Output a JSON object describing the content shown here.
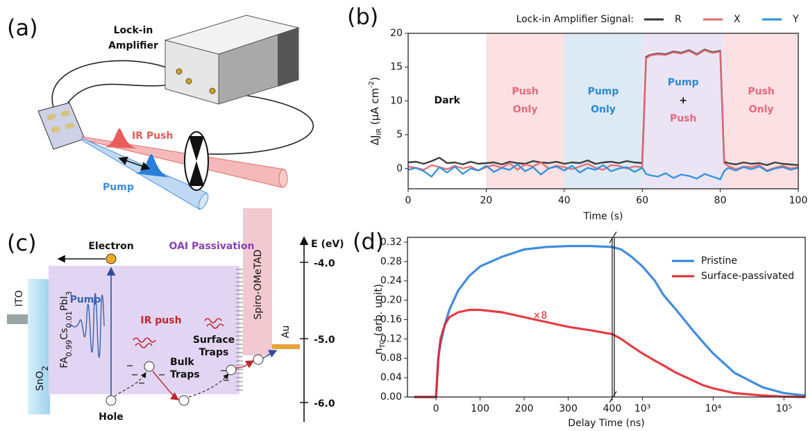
{
  "panel_a": {
    "label": "(a)",
    "instrument": [
      "Lock-in",
      "Amplifier"
    ],
    "ir_push": "IR Push",
    "pump": "Pump"
  },
  "panel_c": {
    "label": "(c)",
    "electron": "Electron",
    "passivation": "OAI Passivation",
    "energy_axis": "E (eV)",
    "energy_levels": [
      "-4.0",
      "-5.0",
      "-6.0"
    ],
    "ito": "ITO",
    "sno2": [
      "SnO",
      "2"
    ],
    "perovskite": [
      "FA",
      "0.99",
      "Cs",
      "0.01",
      "PbI",
      "3"
    ],
    "pump": "Pump",
    "ir_push": "IR push",
    "bulk_traps": [
      "Bulk",
      "Traps"
    ],
    "surface_traps": [
      "Surface",
      "Traps"
    ],
    "htl": "Spiro-OMeTAD",
    "au": "Au",
    "hole": "Hole"
  },
  "chart_data": [
    {
      "type": "line",
      "panel_label": "(b)",
      "xlabel": "Time (s)",
      "ylabel": [
        "ΔJ",
        "IR",
        " (μA cm",
        "-2",
        ")"
      ],
      "legend_title": "Lock-in Amplifier Signal:",
      "xlim": [
        0,
        100
      ],
      "xticks": [
        0,
        20,
        40,
        60,
        80,
        100
      ],
      "ylim": [
        -3,
        20
      ],
      "yticks": [
        0,
        5,
        10,
        15,
        20
      ],
      "regions": [
        {
          "label": [
            "Dark"
          ],
          "label_colors": [
            "#111111"
          ],
          "start": 0,
          "end": 20,
          "color": "#ffffff"
        },
        {
          "label": [
            "Push",
            "Only"
          ],
          "label_colors": [
            "#e8677a",
            "#e8677a"
          ],
          "start": 20,
          "end": 40,
          "color": "#fbe1e3"
        },
        {
          "label": [
            "Pump",
            "Only"
          ],
          "label_colors": [
            "#2a8ad8",
            "#2a8ad8"
          ],
          "start": 40,
          "end": 60,
          "color": "#dde9f3"
        },
        {
          "label": [
            "Pump",
            "+",
            "Push"
          ],
          "label_colors": [
            "#2a8ad8",
            "#111111",
            "#e8677a"
          ],
          "start": 60,
          "end": 81,
          "color": "#ebe4f5"
        },
        {
          "label": [
            "Push",
            "Only"
          ],
          "label_colors": [
            "#e8677a",
            "#e8677a"
          ],
          "start": 81,
          "end": 100,
          "color": "#fbe1e3"
        }
      ],
      "x": [
        0,
        2,
        4,
        6,
        8,
        10,
        12,
        14,
        16,
        18,
        20,
        22,
        24,
        26,
        28,
        30,
        32,
        34,
        36,
        38,
        40,
        42,
        44,
        46,
        48,
        50,
        52,
        54,
        56,
        58,
        60,
        61,
        62,
        64,
        66,
        68,
        70,
        72,
        74,
        76,
        78,
        80,
        81,
        82,
        84,
        86,
        88,
        90,
        92,
        94,
        96,
        98,
        100
      ],
      "series": [
        {
          "name": "R",
          "color": "#333333",
          "values": [
            0.9,
            1.0,
            0.7,
            1.1,
            1.6,
            0.8,
            0.9,
            0.6,
            1.0,
            0.7,
            0.8,
            0.9,
            0.6,
            1.0,
            0.8,
            0.7,
            1.1,
            0.9,
            0.8,
            1.0,
            0.7,
            0.9,
            0.8,
            1.2,
            0.7,
            0.9,
            1.0,
            0.8,
            1.1,
            0.9,
            0.8,
            16.5,
            16.8,
            17.0,
            16.9,
            17.3,
            17.1,
            17.5,
            16.9,
            17.6,
            17.2,
            17.4,
            1.0,
            0.8,
            0.6,
            0.9,
            0.7,
            0.8,
            0.5,
            0.9,
            0.7,
            0.6,
            0.5
          ]
        },
        {
          "name": "X",
          "color": "#e8686f",
          "values": [
            0.3,
            0.1,
            -0.2,
            0.5,
            0.2,
            -0.1,
            0.4,
            0.0,
            0.3,
            -0.3,
            0.2,
            0.5,
            0.1,
            0.8,
            -0.2,
            0.6,
            0.3,
            0.9,
            0.0,
            0.4,
            0.2,
            -0.1,
            0.3,
            0.7,
            0.1,
            -0.2,
            0.5,
            0.4,
            0.0,
            0.3,
            0.2,
            16.3,
            16.7,
            16.9,
            16.8,
            17.2,
            17.0,
            17.4,
            16.8,
            17.5,
            17.1,
            17.3,
            0.8,
            0.4,
            -0.1,
            0.3,
            0.2,
            0.5,
            -0.3,
            0.1,
            0.4,
            0.0,
            0.2
          ]
        },
        {
          "name": "Y",
          "color": "#2a8fe0",
          "values": [
            -0.2,
            0.1,
            -0.4,
            -1.2,
            0.2,
            -0.6,
            0.3,
            -0.8,
            0.0,
            -0.3,
            0.4,
            -0.5,
            0.1,
            -0.2,
            0.6,
            -0.4,
            0.2,
            -0.9,
            0.0,
            0.3,
            -0.3,
            0.4,
            -0.6,
            0.1,
            -0.2,
            0.5,
            -0.4,
            0.0,
            0.2,
            -0.5,
            0.1,
            -0.8,
            -1.0,
            -1.2,
            -0.7,
            -1.4,
            -0.9,
            -1.1,
            -1.5,
            -0.8,
            -1.2,
            -1.6,
            -0.4,
            0.1,
            -0.3,
            0.2,
            -0.1,
            0.3,
            -0.4,
            0.0,
            0.2,
            -0.2,
            0.1
          ]
        }
      ]
    },
    {
      "type": "line",
      "panel_label": "(d)",
      "xlabel": "Delay Time (ns)",
      "ylabel": [
        "n",
        "TC",
        " (arb. unit)"
      ],
      "annotation": "×8",
      "xlim": [
        -65,
        400
      ],
      "xticks": [
        0,
        100,
        200,
        300,
        400
      ],
      "x2lim": [
        400,
        200000
      ],
      "x2scale": "log",
      "x2ticks": [
        {
          "value": 1000,
          "label": "10³"
        },
        {
          "value": 10000,
          "label": "10⁴"
        },
        {
          "value": 100000,
          "label": "10⁵"
        }
      ],
      "ylim": [
        0,
        0.33
      ],
      "yticks": [
        {
          "value": 0,
          "label": "0.00"
        },
        0.04,
        0.08,
        0.12,
        0.16,
        {
          "value": 0.2,
          "label": "0.20"
        },
        0.24,
        0.28,
        0.32
      ],
      "x": [
        -50,
        -20,
        0,
        5,
        10,
        20,
        30,
        50,
        75,
        100,
        150,
        200,
        250,
        300,
        350,
        400,
        500,
        700,
        1000,
        1500,
        2000,
        3000,
        5000,
        7000,
        10000,
        20000,
        50000,
        100000,
        200000
      ],
      "series": [
        {
          "name": "Pristine",
          "color": "#2a7fdc",
          "values": [
            0,
            0,
            0,
            0.08,
            0.11,
            0.15,
            0.18,
            0.22,
            0.25,
            0.27,
            0.29,
            0.305,
            0.31,
            0.312,
            0.312,
            0.31,
            0.305,
            0.29,
            0.27,
            0.24,
            0.21,
            0.18,
            0.14,
            0.115,
            0.09,
            0.05,
            0.02,
            0.008,
            0.003
          ]
        },
        {
          "name": "Surface-passivated",
          "color": "#e3262d",
          "values": [
            0,
            0,
            0,
            0.08,
            0.12,
            0.15,
            0.165,
            0.175,
            0.18,
            0.18,
            0.175,
            0.165,
            0.155,
            0.145,
            0.138,
            0.13,
            0.12,
            0.105,
            0.09,
            0.075,
            0.065,
            0.05,
            0.035,
            0.025,
            0.018,
            0.008,
            0.003,
            0.001,
            0
          ]
        }
      ]
    }
  ]
}
